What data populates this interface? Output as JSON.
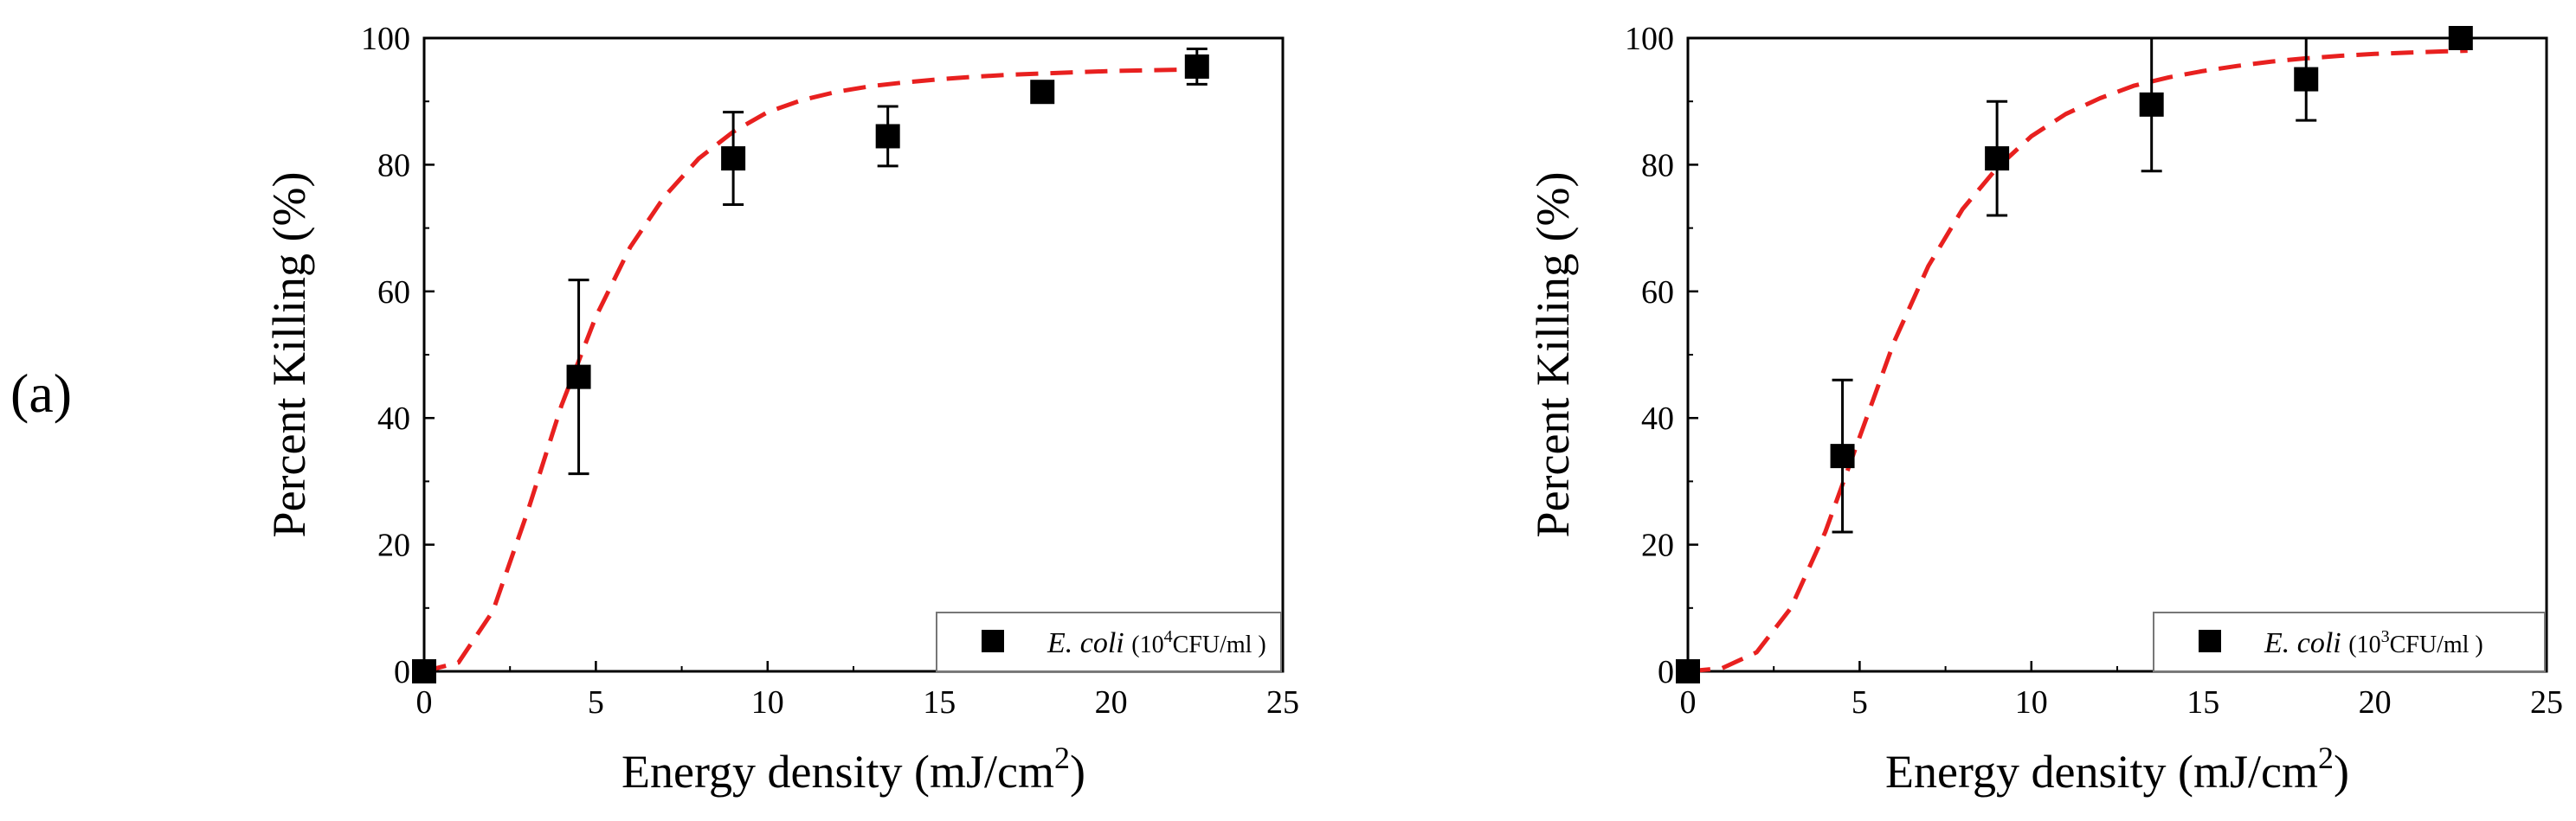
{
  "panel_label": "(a)",
  "chart_data": [
    {
      "type": "scatter",
      "xlabel": "Energy density (mJ/cm",
      "xlabel_sup": "2",
      "xlabel_end": ")",
      "ylabel": "Percent Killing (%)",
      "xlim": [
        0,
        25
      ],
      "ylim": [
        0,
        100
      ],
      "xticks": [
        0,
        5,
        10,
        15,
        20,
        25
      ],
      "yticks": [
        0,
        20,
        40,
        60,
        80,
        100
      ],
      "grid": false,
      "legend": {
        "placement": "bottom-right",
        "name_italic": "E. coli",
        "paren_open": "(10",
        "sup": "4",
        "suffix": "CFU/ml )"
      },
      "series": [
        {
          "name": "E. coli (10^4 CFU/ml)",
          "marker": "square",
          "color": "#000000",
          "x": [
            0,
            4.5,
            9,
            13.5,
            18,
            22.5
          ],
          "y": [
            0,
            46.5,
            81,
            84.5,
            91.5,
            95.5
          ],
          "err": [
            0,
            15.3,
            7.3,
            4.7,
            1.2,
            2.8
          ]
        }
      ],
      "fit": {
        "name": "sigmoid fit",
        "style": "dashed",
        "color": "#e8201f",
        "x": [
          0,
          1,
          2,
          3,
          4,
          5,
          6,
          7,
          8,
          9,
          10,
          11,
          12,
          13,
          14,
          15,
          16,
          17,
          18,
          19,
          20,
          21,
          22,
          22.7
        ],
        "y": [
          0,
          1.4,
          9.5,
          25,
          42,
          56,
          67,
          75,
          81,
          85.2,
          88.3,
          90.2,
          91.5,
          92.4,
          93.0,
          93.5,
          93.9,
          94.2,
          94.4,
          94.6,
          94.8,
          94.9,
          95.0,
          95.0
        ]
      }
    },
    {
      "type": "scatter",
      "xlabel": "Energy density (mJ/cm",
      "xlabel_sup": "2",
      "xlabel_end": ")",
      "ylabel": "Percent Killing (%)",
      "xlim": [
        0,
        25
      ],
      "ylim": [
        0,
        100
      ],
      "xticks": [
        0,
        5,
        10,
        15,
        20,
        25
      ],
      "yticks": [
        0,
        20,
        40,
        60,
        80,
        100
      ],
      "grid": false,
      "legend": {
        "placement": "bottom-right",
        "name_italic": "E. coli",
        "paren_open": "(10",
        "sup": "3",
        "suffix": "CFU/ml )"
      },
      "series": [
        {
          "name": "E. coli (10^3 CFU/ml)",
          "marker": "square",
          "color": "#000000",
          "x": [
            0,
            4.5,
            9,
            13.5,
            18,
            22.5
          ],
          "y": [
            0,
            34,
            81,
            89.5,
            93.5,
            100
          ],
          "err": [
            0,
            12,
            9,
            10.5,
            6.5,
            0
          ]
        }
      ],
      "fit": {
        "name": "sigmoid fit",
        "style": "dashed",
        "color": "#e8201f",
        "x": [
          0,
          1,
          2,
          3,
          4,
          5,
          6,
          7,
          8,
          9,
          10,
          11,
          12,
          13,
          14,
          15,
          16,
          17,
          18,
          19,
          20,
          21,
          22,
          22.7
        ],
        "y": [
          0,
          0.5,
          3,
          10,
          22,
          37,
          52,
          64,
          73,
          79.5,
          84.5,
          88,
          90.5,
          92.5,
          93.8,
          94.8,
          95.6,
          96.3,
          96.8,
          97.2,
          97.5,
          97.7,
          97.9,
          98.0
        ]
      }
    }
  ]
}
